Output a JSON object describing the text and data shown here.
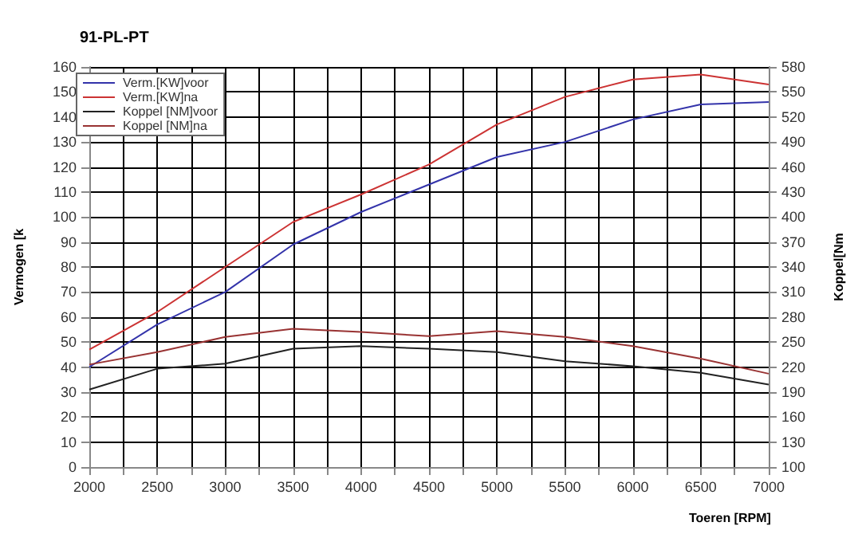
{
  "chart_data": {
    "type": "line",
    "title": "91-PL-PT",
    "xlabel": "Toeren [RPM]",
    "ylabel": "Vermogen [k",
    "y2label": "Koppel[Nm",
    "x": [
      2000,
      2500,
      3000,
      3500,
      4000,
      4500,
      5000,
      5500,
      6000,
      6500,
      7000
    ],
    "series": [
      {
        "name": "Verm.[KW]voor",
        "color": "#3333aa",
        "values": [
          40,
          57,
          70,
          89,
          102,
          113,
          124,
          130,
          139,
          145,
          146
        ]
      },
      {
        "name": "Verm.[KW]na",
        "color": "#cc3333",
        "values": [
          47,
          62,
          80,
          98,
          109,
          121,
          137,
          148,
          155,
          157,
          153
        ]
      },
      {
        "name": "Koppel [NM]voor",
        "color": "#222222",
        "axis": "y2",
        "values": [
          193,
          218,
          224,
          242,
          245,
          242,
          238,
          227,
          221,
          213,
          199
        ]
      },
      {
        "name": "Koppel [NM]na",
        "color": "#993333",
        "axis": "y2",
        "values": [
          223,
          238,
          256,
          266,
          262,
          257,
          263,
          256,
          245,
          230,
          212
        ]
      }
    ],
    "xlim": [
      2000,
      7000
    ],
    "xticks": [
      2000,
      {
        "value": 2250,
        "label": null
      },
      2500,
      {
        "value": 2750,
        "label": null
      },
      3000,
      {
        "value": 3250,
        "label": null
      },
      3500,
      {
        "value": 3750,
        "label": null
      },
      4000,
      {
        "value": 4250,
        "label": null
      },
      4500,
      {
        "value": 4750,
        "label": null
      },
      5000,
      {
        "value": 5250,
        "label": null
      },
      5500,
      {
        "value": 5750,
        "label": null
      },
      6000,
      {
        "value": 6250,
        "label": null
      },
      6500,
      {
        "value": 6750,
        "label": null
      },
      7000
    ],
    "ylim": [
      0,
      160
    ],
    "yticks": [
      0,
      10,
      20,
      30,
      40,
      50,
      60,
      70,
      80,
      90,
      100,
      110,
      120,
      130,
      140,
      150,
      160
    ],
    "y2lim": [
      100,
      580
    ],
    "y2ticks": [
      100,
      130,
      160,
      190,
      220,
      250,
      280,
      310,
      340,
      370,
      400,
      430,
      460,
      490,
      520,
      550,
      580
    ],
    "grid": true,
    "legend": "top left",
    "marker": "none",
    "line_style": "solid"
  }
}
